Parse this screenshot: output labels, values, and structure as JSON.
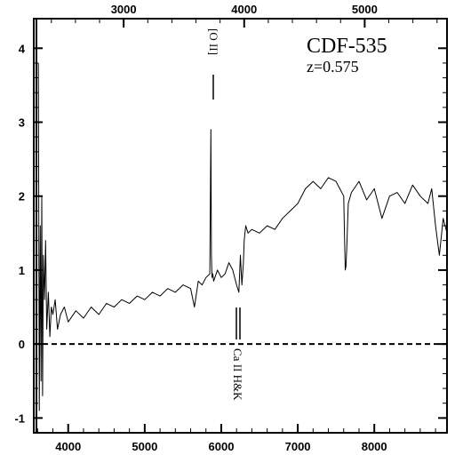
{
  "chart_data": {
    "type": "line",
    "title": "",
    "xlabel": "",
    "ylabel": "",
    "xlim": [
      3550,
      8950
    ],
    "ylim": [
      -1.2,
      4.4
    ],
    "top_axis_lim": [
      2254,
      5683
    ],
    "x_ticks": [
      4000,
      5000,
      6000,
      7000,
      8000
    ],
    "x_tick_labels": [
      "4000",
      "5000",
      "6000",
      "7000",
      "8000"
    ],
    "top_ticks": [
      3000,
      4000,
      5000
    ],
    "top_tick_labels": [
      "3000",
      "4000",
      "5000"
    ],
    "y_ticks": [
      -1,
      0,
      1,
      2,
      3,
      4
    ],
    "y_tick_labels": [
      "-1",
      "0",
      "1",
      "2",
      "3",
      "4"
    ],
    "reference_line": {
      "y": 0,
      "style": "dashed"
    },
    "annotations": {
      "object_name": "CDF-535",
      "redshift": "z=0.575",
      "line_oii": "[O II]",
      "line_caii": "Ca II H&K"
    },
    "series": [
      {
        "x": [
          3610,
          3622,
          3635,
          3645,
          3655,
          3665,
          3675,
          3690,
          3705,
          3720,
          3740,
          3760,
          3780,
          3800,
          3830,
          3860,
          3900,
          3950,
          4000,
          4100,
          4200,
          4300,
          4400,
          4500,
          4600,
          4700,
          4800,
          4900,
          5000,
          5100,
          5200,
          5300,
          5400,
          5500,
          5600,
          5650,
          5700,
          5750,
          5800,
          5850,
          5865,
          5872,
          5880,
          5890,
          5900,
          5950,
          6000,
          6050,
          6100,
          6150,
          6200,
          6230,
          6250,
          6270,
          6290,
          6300,
          6320,
          6350,
          6400,
          6500,
          6600,
          6700,
          6800,
          6900,
          7000,
          7100,
          7200,
          7300,
          7400,
          7500,
          7550,
          7600,
          7610,
          7620,
          7630,
          7640,
          7660,
          7700,
          7800,
          7900,
          8000,
          8100,
          8200,
          8300,
          8400,
          8500,
          8600,
          8700,
          8750,
          8800,
          8850,
          8900,
          8950
        ],
        "y": [
          3.8,
          -0.9,
          1.6,
          -0.5,
          2.0,
          -0.7,
          1.2,
          0.6,
          1.4,
          0.2,
          0.7,
          0.1,
          0.5,
          0.4,
          0.6,
          0.2,
          0.4,
          0.5,
          0.3,
          0.45,
          0.35,
          0.5,
          0.4,
          0.55,
          0.5,
          0.6,
          0.55,
          0.65,
          0.6,
          0.7,
          0.65,
          0.75,
          0.7,
          0.8,
          0.75,
          0.5,
          0.85,
          0.8,
          0.9,
          0.95,
          2.9,
          1.2,
          0.9,
          0.95,
          0.85,
          1.0,
          0.9,
          0.95,
          1.1,
          1.0,
          0.8,
          0.7,
          1.2,
          0.8,
          1.1,
          1.4,
          1.6,
          1.5,
          1.55,
          1.5,
          1.6,
          1.55,
          1.7,
          1.8,
          1.9,
          2.1,
          2.2,
          2.1,
          2.25,
          2.2,
          2.1,
          2.0,
          1.5,
          1.0,
          1.05,
          1.3,
          1.9,
          2.05,
          2.2,
          1.95,
          2.1,
          1.7,
          2.0,
          2.05,
          1.9,
          2.15,
          2.0,
          1.9,
          2.1,
          1.6,
          1.2,
          1.7,
          1.5
        ]
      }
    ]
  }
}
